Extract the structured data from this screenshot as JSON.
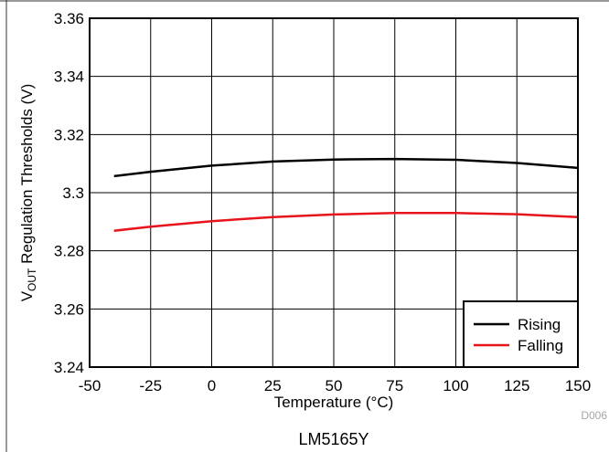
{
  "chart_data": {
    "type": "line",
    "title": "",
    "xlabel": "Temperature (°C)",
    "ylabel": {
      "prefix": "V",
      "subscript": "OUT",
      "suffix": " Regulation Thresholds (V)"
    },
    "xlim": [
      -50,
      150
    ],
    "ylim": [
      3.24,
      3.36
    ],
    "xticks": [
      -50,
      -25,
      0,
      25,
      50,
      75,
      100,
      125,
      150
    ],
    "yticks": [
      3.24,
      3.26,
      3.28,
      3.3,
      3.32,
      3.34,
      3.36
    ],
    "xtick_labels": [
      "-50",
      "-25",
      "0",
      "25",
      "50",
      "75",
      "100",
      "125",
      "150"
    ],
    "ytick_labels": [
      "3.24",
      "3.26",
      "3.28",
      "3.3",
      "3.32",
      "3.34",
      "3.36"
    ],
    "grid": true,
    "legend_position": "bottom-right",
    "series": [
      {
        "name": "Rising",
        "color": "#000000",
        "x": [
          -40,
          -25,
          0,
          25,
          50,
          75,
          100,
          125,
          150
        ],
        "y": [
          3.3057,
          3.3072,
          3.3093,
          3.3107,
          3.3114,
          3.3116,
          3.3113,
          3.3102,
          3.3085
        ]
      },
      {
        "name": "Falling",
        "color": "#e8141b",
        "x": [
          -40,
          -25,
          0,
          25,
          50,
          75,
          100,
          125,
          150
        ],
        "y": [
          3.2869,
          3.2883,
          3.2902,
          3.2916,
          3.2925,
          3.293,
          3.293,
          3.2926,
          3.2916
        ]
      }
    ],
    "figure_id": "D006",
    "caption": "LM5165Y"
  }
}
